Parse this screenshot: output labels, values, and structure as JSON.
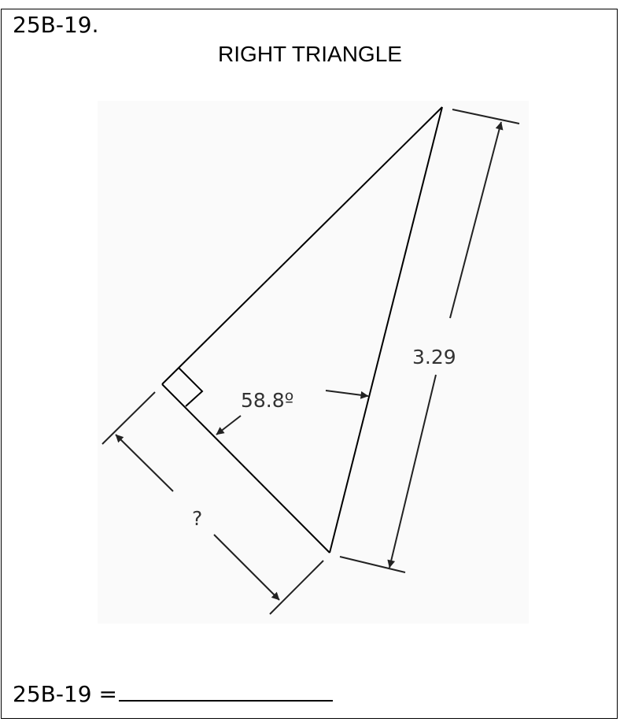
{
  "problem": {
    "number": "25B-19.",
    "title": "RIGHT TRIANGLE"
  },
  "diagram": {
    "hypotenuse_label": "3.29",
    "angle_label": "58.8º",
    "unknown_label": "?"
  },
  "answer": {
    "label": "25B-19 ="
  },
  "colors": {
    "line": "#000000",
    "dimension": "#222222",
    "background": "#ffffff",
    "diagram_background": "#fafafa"
  }
}
